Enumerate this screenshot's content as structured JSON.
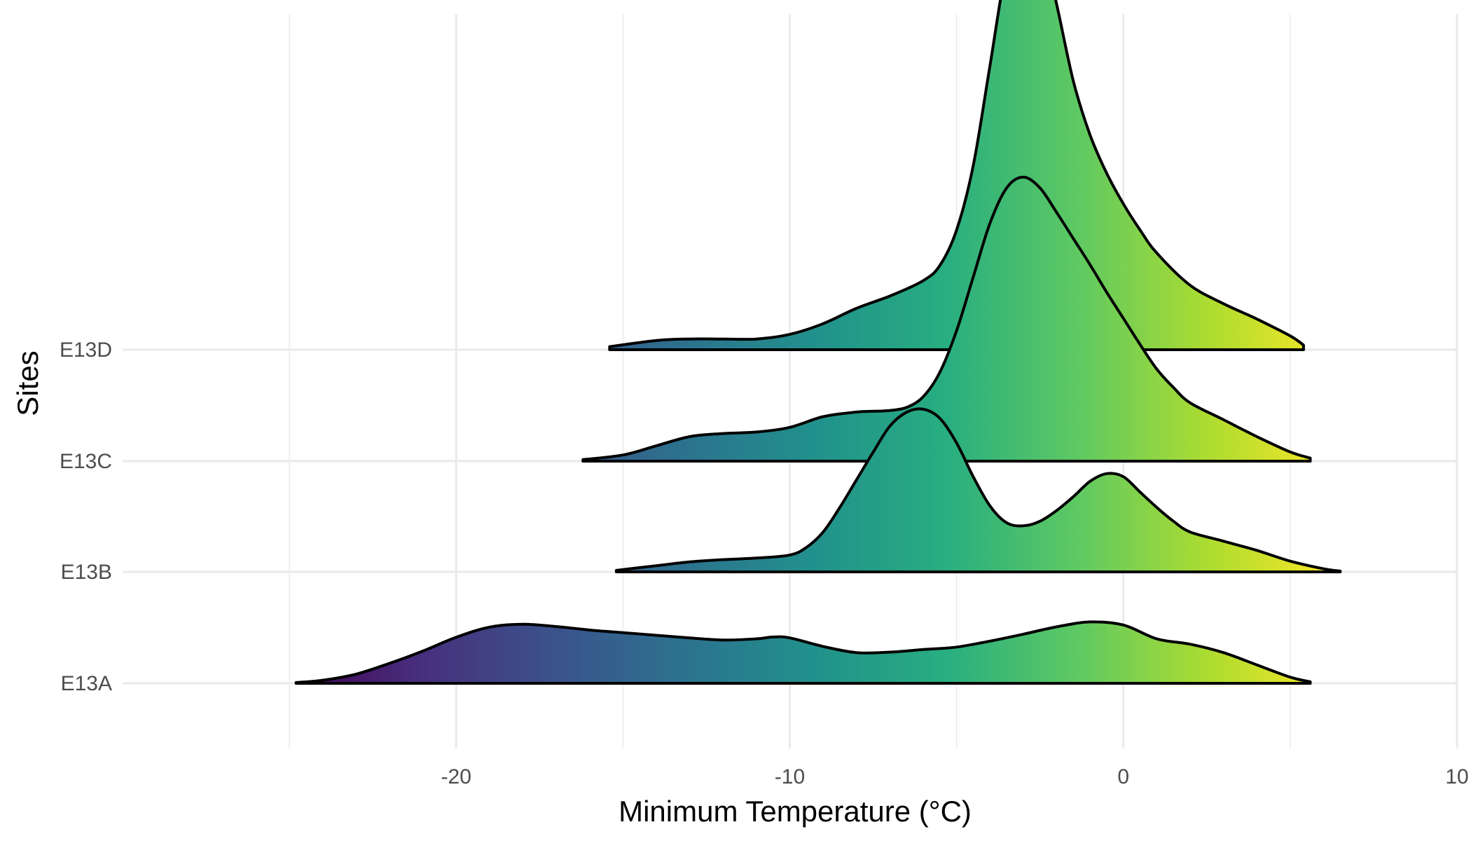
{
  "chart_data": {
    "type": "ridgeline",
    "xlabel": "Minimum Temperature (°C)",
    "ylabel": "Sites",
    "xlim": [
      -30,
      10
    ],
    "x_ticks": [
      -20,
      -10,
      0,
      10
    ],
    "x_tick_labels": [
      "-20",
      "-10",
      "0",
      "10"
    ],
    "fill": "gradient along x (viridis colour scale)",
    "gradient_colors": [
      "#440154",
      "#472f7d",
      "#3b528b",
      "#2c728e",
      "#21918c",
      "#28ae80",
      "#5ec962",
      "#addc30",
      "#fde725"
    ],
    "categories": [
      "E13A",
      "E13B",
      "E13C",
      "E13D"
    ],
    "series": [
      {
        "name": "E13A",
        "x": [
          -24.8,
          -24,
          -23,
          -22,
          -21,
          -20,
          -19,
          -18,
          -17,
          -16,
          -15,
          -14,
          -13,
          -12,
          -11,
          -10.5,
          -10,
          -9,
          -8,
          -7,
          -6,
          -5,
          -4,
          -3,
          -2,
          -1,
          0,
          1,
          2,
          3,
          4,
          5,
          5.6
        ],
        "density": [
          0.005,
          0.02,
          0.06,
          0.13,
          0.21,
          0.3,
          0.366,
          0.385,
          0.37,
          0.347,
          0.33,
          0.313,
          0.296,
          0.282,
          0.29,
          0.302,
          0.296,
          0.24,
          0.2,
          0.203,
          0.22,
          0.236,
          0.275,
          0.32,
          0.368,
          0.4,
          0.38,
          0.29,
          0.255,
          0.2,
          0.12,
          0.04,
          0.01
        ]
      },
      {
        "name": "E13B",
        "x": [
          -15.2,
          -14,
          -13,
          -12,
          -11,
          -10,
          -9.5,
          -9,
          -8.5,
          -8,
          -7.5,
          -7,
          -6.5,
          -6,
          -5.5,
          -5,
          -4.5,
          -4,
          -3.5,
          -3,
          -2.5,
          -2,
          -1.5,
          -1,
          -0.5,
          0,
          0.5,
          1,
          1.5,
          2,
          3,
          4,
          5,
          6,
          6.5
        ],
        "density": [
          0.01,
          0.04,
          0.065,
          0.08,
          0.09,
          0.11,
          0.16,
          0.26,
          0.42,
          0.6,
          0.78,
          0.95,
          1.04,
          1.06,
          1.0,
          0.84,
          0.62,
          0.43,
          0.32,
          0.3,
          0.33,
          0.4,
          0.49,
          0.59,
          0.64,
          0.62,
          0.52,
          0.42,
          0.33,
          0.26,
          0.2,
          0.14,
          0.07,
          0.02,
          0.005
        ]
      },
      {
        "name": "E13C",
        "x": [
          -16.2,
          -15,
          -14,
          -13,
          -12,
          -11,
          -10,
          -9,
          -8,
          -7.5,
          -7,
          -6.5,
          -6,
          -5.5,
          -5,
          -4.5,
          -4,
          -3.5,
          -3,
          -2.5,
          -2,
          -1.5,
          -1,
          -0.5,
          0,
          0.5,
          1,
          1.5,
          2,
          3,
          4,
          5,
          5.6
        ],
        "density": [
          0.01,
          0.04,
          0.1,
          0.16,
          0.18,
          0.19,
          0.22,
          0.29,
          0.32,
          0.325,
          0.33,
          0.35,
          0.42,
          0.58,
          0.85,
          1.2,
          1.55,
          1.78,
          1.85,
          1.78,
          1.62,
          1.45,
          1.28,
          1.1,
          0.93,
          0.76,
          0.6,
          0.48,
          0.38,
          0.27,
          0.16,
          0.06,
          0.02
        ]
      },
      {
        "name": "E13D",
        "x": [
          -15.4,
          -14,
          -13,
          -12,
          -11,
          -10,
          -9,
          -8,
          -7,
          -6,
          -5.5,
          -5,
          -4.5,
          -4,
          -3.5,
          -3,
          -2.5,
          -2,
          -1.5,
          -1,
          -0.5,
          0,
          0.5,
          1,
          2,
          3,
          4,
          5,
          5.4
        ],
        "density": [
          0.02,
          0.06,
          0.07,
          0.07,
          0.07,
          0.1,
          0.17,
          0.27,
          0.35,
          0.45,
          0.55,
          0.78,
          1.2,
          1.85,
          2.5,
          2.82,
          2.7,
          2.25,
          1.75,
          1.4,
          1.15,
          0.95,
          0.78,
          0.63,
          0.42,
          0.3,
          0.2,
          0.09,
          0.03
        ]
      }
    ]
  }
}
